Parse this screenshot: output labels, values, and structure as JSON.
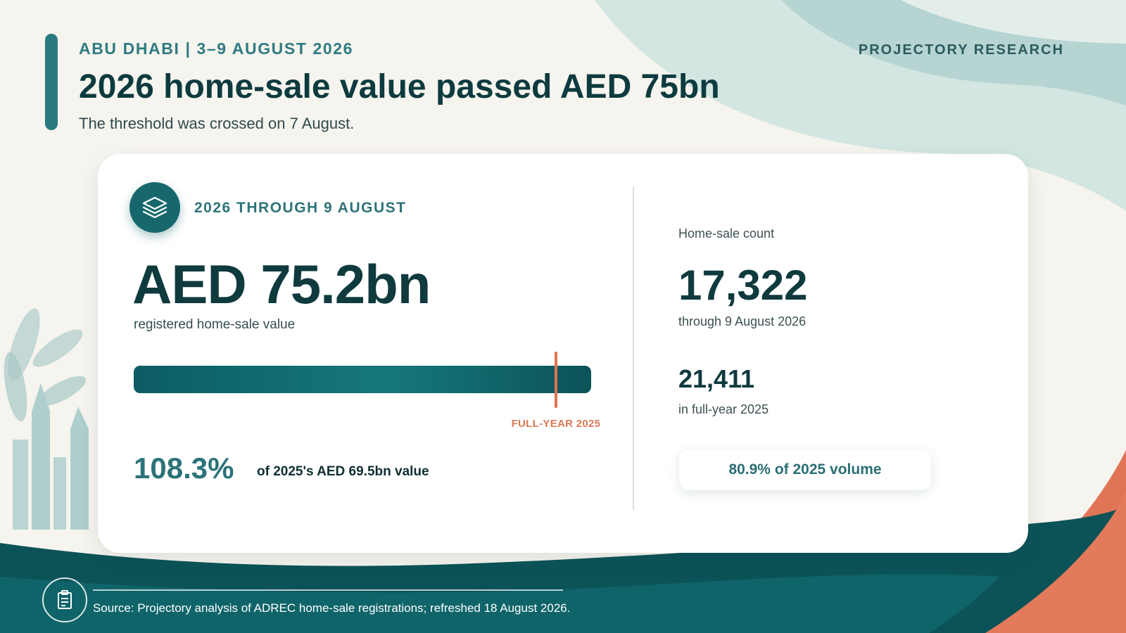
{
  "header": {
    "kicker": "ABU DHABI | 3–9 AUGUST 2026",
    "brand": "PROJECTORY RESEARCH",
    "title": "2026 home-sale value passed AED 75bn",
    "subtitle": "The threshold was crossed on 7 August."
  },
  "card": {
    "period_label": "2026 THROUGH 9 AUGUST",
    "value": "AED 75.2bn",
    "value_caption": "registered home-sale value",
    "progress": {
      "marker_fraction": 0.923,
      "marker_label": "FULL-YEAR 2025"
    },
    "pct_value": "108.3%",
    "pct_caption": "of 2025's AED 69.5bn value",
    "count_label": "Home-sale count",
    "count_value": "17,322",
    "count_caption": "through 9 August 2026",
    "prev_value": "21,411",
    "prev_caption": "in full-year 2025",
    "volume_pill": "80.9% of 2025 volume"
  },
  "footer": {
    "source": "Source: Projectory analysis of ADREC home-sale registrations; refreshed 18 August 2026."
  },
  "icons": {
    "card_icon": "layers-icon",
    "footer_icon": "document-icon"
  },
  "colors": {
    "accent_teal": "#17686d",
    "marker_orange": "#df7450",
    "dark_text": "#0f3a3e",
    "footer_wave": "#0d5c61"
  }
}
